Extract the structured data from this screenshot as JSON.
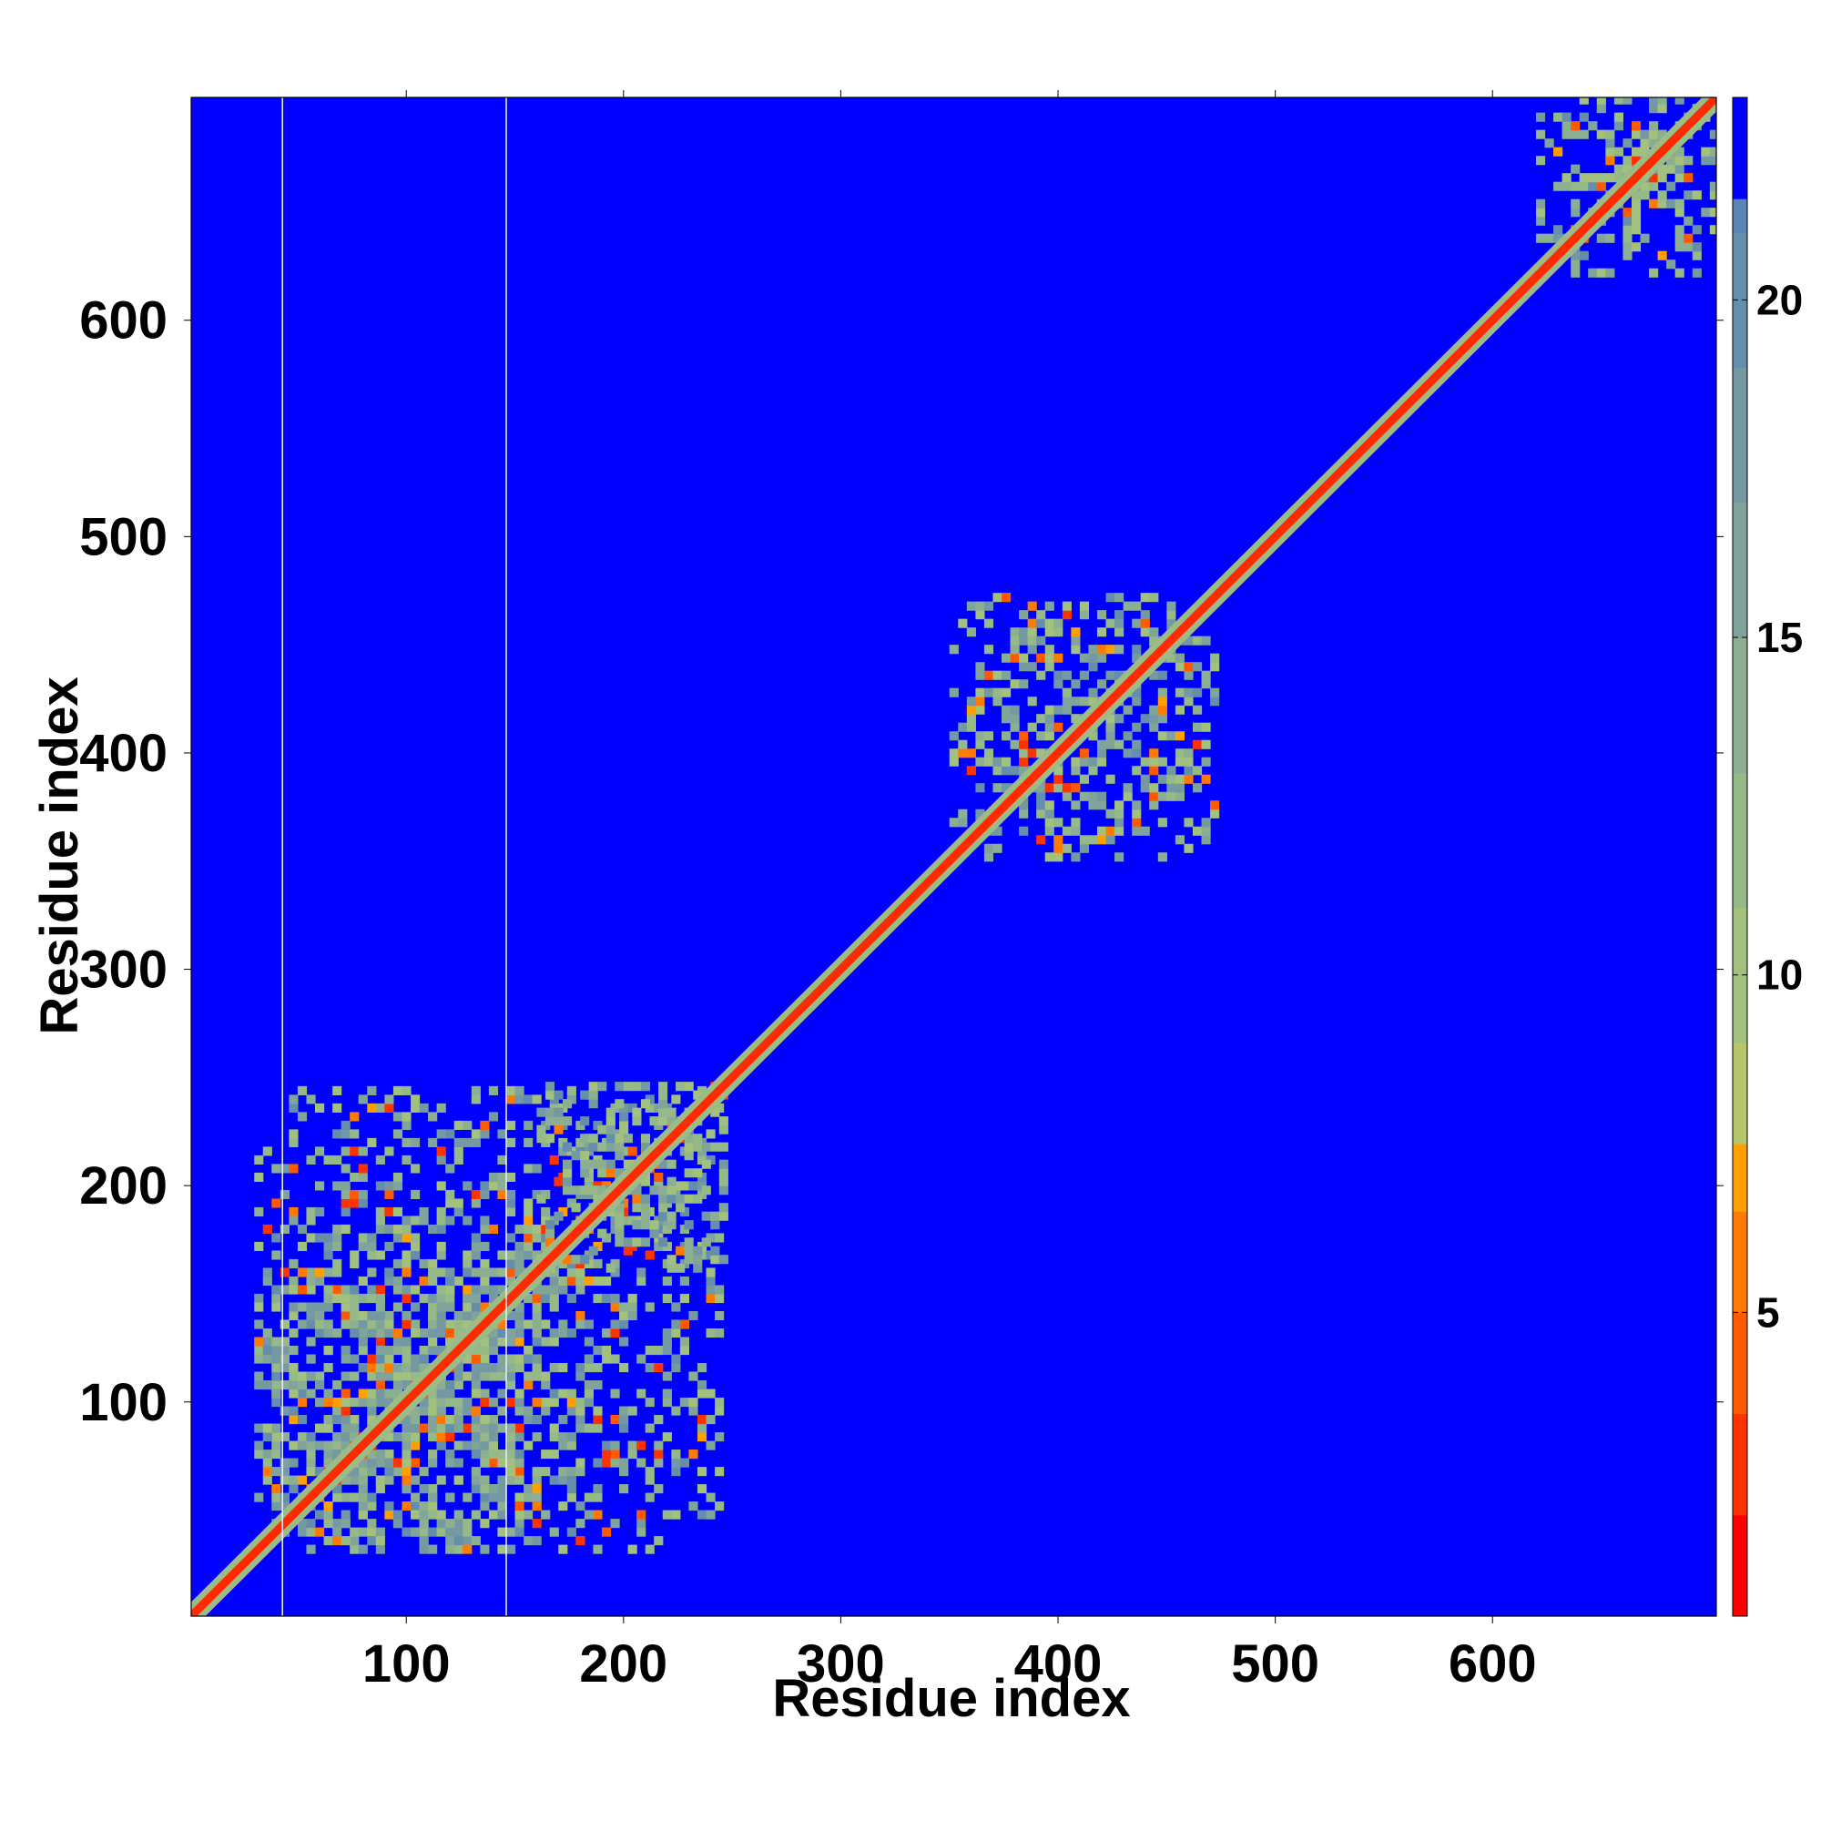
{
  "chart_data": {
    "type": "heatmap",
    "title": "",
    "xlabel": "Residue index",
    "ylabel": "Residue index",
    "xlim": [
      1,
      703
    ],
    "ylim": [
      1,
      703
    ],
    "xticks": [
      100,
      200,
      300,
      400,
      500,
      600
    ],
    "yticks": [
      100,
      200,
      300,
      400,
      500,
      600
    ],
    "background_value": 23,
    "colorbar": {
      "range": [
        0.5,
        23
      ],
      "ticks": [
        5,
        10,
        15,
        20
      ],
      "bands": [
        {
          "from": 0.5,
          "to": 2.0,
          "color": "#ff0000"
        },
        {
          "from": 2.0,
          "to": 3.5,
          "color": "#ff3300"
        },
        {
          "from": 3.5,
          "to": 5.0,
          "color": "#ff5a00"
        },
        {
          "from": 5.0,
          "to": 6.5,
          "color": "#ff7a00"
        },
        {
          "from": 6.5,
          "to": 7.5,
          "color": "#ff9f00"
        },
        {
          "from": 7.5,
          "to": 9.0,
          "color": "#b7c56d"
        },
        {
          "from": 9.0,
          "to": 11.0,
          "color": "#a2c07e"
        },
        {
          "from": 11.0,
          "to": 13.0,
          "color": "#96b988"
        },
        {
          "from": 13.0,
          "to": 15.0,
          "color": "#8daf91"
        },
        {
          "from": 15.0,
          "to": 17.0,
          "color": "#80a49a"
        },
        {
          "from": 17.0,
          "to": 19.0,
          "color": "#7499a3"
        },
        {
          "from": 19.0,
          "to": 21.0,
          "color": "#658eac"
        },
        {
          "from": 21.0,
          "to": 21.5,
          "color": "#5b85b4"
        },
        {
          "from": 21.5,
          "to": 23.0,
          "color": "#0000ff"
        }
      ]
    },
    "diagonal": {
      "from": 1,
      "to": 703,
      "core_color": "#ff2a00",
      "halo_color": "#9dbb84"
    },
    "domains": [
      {
        "x0": 30,
        "x1": 245,
        "y0": 30,
        "y1": 245,
        "density": 0.55
      },
      {
        "x0": 30,
        "x1": 160,
        "y0": 30,
        "y1": 160,
        "density": 0.7
      },
      {
        "x0": 160,
        "x1": 245,
        "y0": 160,
        "y1": 245,
        "density": 0.65
      },
      {
        "x0": 350,
        "x1": 472,
        "y0": 350,
        "y1": 472,
        "density": 0.6
      },
      {
        "x0": 620,
        "x1": 703,
        "y0": 620,
        "y1": 703,
        "density": 0.65
      }
    ],
    "vertical_lines": [
      43,
      146
    ]
  }
}
